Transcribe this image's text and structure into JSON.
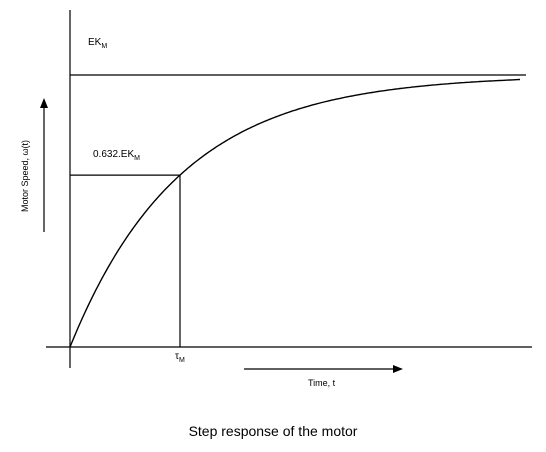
{
  "diagram": {
    "top_level_label": {
      "main": "EK",
      "sub": "M"
    },
    "marker_label": {
      "main": "0.632.EK",
      "sub": "M"
    },
    "time_constant_label": {
      "main": "τ",
      "sub": "M"
    },
    "y_axis_label": "Motor Speed, ω(t)",
    "x_axis_label": "Time, t",
    "marker_fraction": 0.632,
    "caption": "Step response of the motor"
  }
}
